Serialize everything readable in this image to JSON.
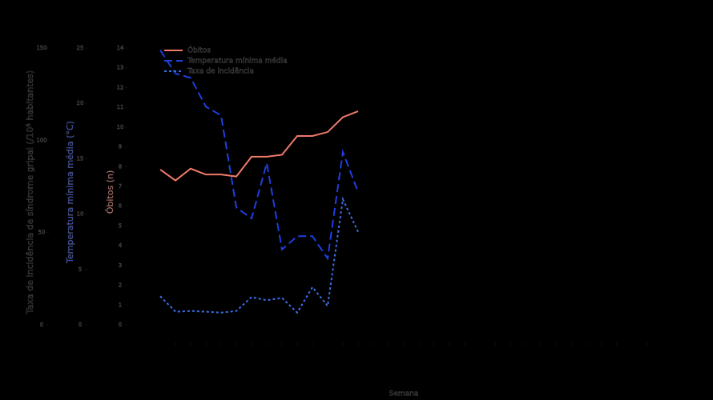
{
  "chart_data": {
    "type": "line",
    "x_label": "Semana",
    "categories": [
      null,
      null,
      null,
      null,
      null,
      null,
      null,
      null,
      null,
      null,
      null,
      null,
      null,
      null,
      null,
      null,
      null,
      null,
      null,
      null,
      null,
      null,
      null,
      null,
      null,
      null,
      null,
      null,
      null,
      null,
      null,
      null,
      null
    ],
    "axes": [
      {
        "label": "Taxa de incidência de síndrome gripal (/10⁵ habitantes)",
        "ylim": [
          0,
          150
        ],
        "yticks": [
          0,
          50,
          100,
          150
        ]
      },
      {
        "label": "Temperatura mínima média (°C)",
        "ylim": [
          0,
          25
        ],
        "yticks": [
          0,
          5,
          10,
          15,
          20,
          25
        ]
      },
      {
        "label": "Óbitos (n)",
        "ylim": [
          0,
          14
        ],
        "yticks": [
          0,
          1,
          2,
          3,
          4,
          5,
          6,
          7,
          8,
          9,
          10,
          11,
          12,
          13,
          14
        ]
      }
    ],
    "series": [
      {
        "name": "Óbitos",
        "color": "#f07a6a",
        "dash": "solid",
        "axis": 2,
        "values": [
          7.85,
          7.3,
          7.9,
          7.6,
          7.6,
          7.5,
          8.5,
          8.5,
          8.6,
          9.55,
          9.55,
          9.75,
          10.5,
          10.8,
          null,
          null,
          null,
          null,
          null,
          null,
          null,
          null,
          null,
          null,
          null,
          null,
          null,
          null,
          null,
          null,
          null,
          null,
          null
        ]
      },
      {
        "name": "Temperatura mínima média",
        "color": "#1f3fe0",
        "dash": "dashed",
        "axis": 1,
        "values": [
          24.8,
          22.7,
          22.3,
          19.7,
          18.9,
          10.6,
          9.6,
          14.6,
          6.8,
          8.0,
          8.0,
          6.0,
          15.6,
          12.0,
          null,
          null,
          null,
          null,
          null,
          null,
          null,
          null,
          null,
          null,
          null,
          null,
          null,
          null,
          null,
          null,
          null,
          null,
          null
        ]
      },
      {
        "name": "Taxa de incidência",
        "color": "#3a6ee8",
        "dash": "dotted",
        "axis": 0,
        "values": [
          15.5,
          7.1,
          7.5,
          7.1,
          6.6,
          7.5,
          15,
          13.3,
          14.6,
          6.6,
          20.4,
          10.2,
          68,
          50.4,
          null,
          null,
          null,
          null,
          null,
          null,
          null,
          null,
          null,
          null,
          null,
          null,
          null,
          null,
          null,
          null,
          null,
          null,
          null
        ]
      }
    ]
  }
}
